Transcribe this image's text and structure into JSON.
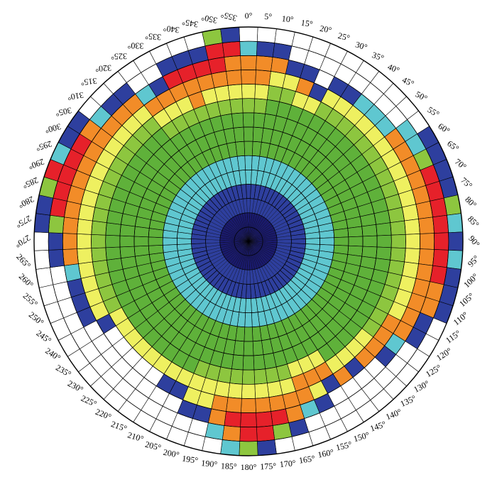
{
  "chart_data": {
    "type": "heatmap",
    "projection": "polar",
    "angle_direction": "clockwise",
    "zero_angle_position": "top",
    "angle_step_deg": 5,
    "ring_count": 15,
    "angle_labels": [
      "0°",
      "5°",
      "10°",
      "15°",
      "20°",
      "25°",
      "30°",
      "35°",
      "40°",
      "45°",
      "50°",
      "55°",
      "60°",
      "65°",
      "70°",
      "75°",
      "80°",
      "85°",
      "90°",
      "95°",
      "100°",
      "105°",
      "110°",
      "115°",
      "120°",
      "125°",
      "130°",
      "135°",
      "140°",
      "145°",
      "150°",
      "155°",
      "160°",
      "165°",
      "170°",
      "175°",
      "180°",
      "185°",
      "190°",
      "195°",
      "200°",
      "205°",
      "210°",
      "215°",
      "220°",
      "225°",
      "230°",
      "235°",
      "240°",
      "245°",
      "250°",
      "255°",
      "260°",
      "265°",
      "270°",
      "275°",
      "280°",
      "285°",
      "290°",
      "295°",
      "300°",
      "305°",
      "310°",
      "315°",
      "320°",
      "325°",
      "330°",
      "335°",
      "340°",
      "345°",
      "350°",
      "355°"
    ],
    "color_scale": {
      "0": "#1a1a6e",
      "1": "#2e3f9e",
      "2": "#5fc7d0",
      "3": "#5fb13a",
      "4": "#8dc63f",
      "5": "#eef060",
      "6": "#f28c28",
      "7": "#e6212a"
    },
    "grid_color": "#000000",
    "grid": true,
    "legend": "none",
    "cell_values": [
      [
        0,
        0,
        1,
        1,
        2,
        2,
        3,
        3,
        3,
        4,
        5,
        6,
        6,
        2,
        0
      ],
      [
        0,
        0,
        1,
        1,
        2,
        2,
        3,
        3,
        3,
        4,
        5,
        6,
        6,
        1,
        0
      ],
      [
        0,
        0,
        1,
        1,
        2,
        2,
        3,
        3,
        3,
        3,
        4,
        5,
        6,
        1,
        0
      ],
      [
        0,
        0,
        1,
        1,
        2,
        2,
        3,
        3,
        3,
        3,
        4,
        5,
        1,
        0,
        0
      ],
      [
        0,
        0,
        1,
        1,
        2,
        2,
        3,
        3,
        3,
        3,
        5,
        6,
        1,
        0,
        0
      ],
      [
        0,
        0,
        1,
        1,
        2,
        2,
        3,
        3,
        3,
        3,
        5,
        1,
        0,
        0,
        0
      ],
      [
        0,
        0,
        1,
        1,
        2,
        2,
        3,
        3,
        3,
        3,
        4,
        5,
        1,
        0,
        0
      ],
      [
        0,
        0,
        1,
        1,
        2,
        2,
        3,
        3,
        3,
        3,
        4,
        5,
        1,
        0,
        0
      ],
      [
        0,
        0,
        1,
        1,
        2,
        2,
        3,
        3,
        3,
        3,
        4,
        5,
        2,
        0,
        0
      ],
      [
        0,
        0,
        1,
        1,
        2,
        2,
        3,
        3,
        3,
        3,
        4,
        5,
        2,
        0,
        0
      ],
      [
        0,
        0,
        1,
        1,
        2,
        2,
        3,
        3,
        3,
        3,
        4,
        5,
        2,
        0,
        0
      ],
      [
        0,
        0,
        1,
        1,
        2,
        2,
        3,
        3,
        3,
        3,
        4,
        5,
        6,
        2,
        0
      ],
      [
        0,
        0,
        1,
        1,
        2,
        2,
        3,
        3,
        3,
        3,
        4,
        5,
        6,
        2,
        1
      ],
      [
        0,
        0,
        1,
        1,
        2,
        2,
        3,
        3,
        3,
        3,
        4,
        5,
        6,
        4,
        1
      ],
      [
        0,
        0,
        1,
        1,
        2,
        2,
        3,
        3,
        3,
        3,
        4,
        5,
        6,
        7,
        1
      ],
      [
        0,
        0,
        1,
        1,
        2,
        2,
        3,
        3,
        3,
        3,
        4,
        5,
        6,
        7,
        1
      ],
      [
        0,
        0,
        1,
        1,
        2,
        2,
        3,
        3,
        3,
        3,
        4,
        5,
        6,
        7,
        4
      ],
      [
        0,
        0,
        1,
        1,
        2,
        2,
        3,
        3,
        3,
        3,
        4,
        5,
        6,
        7,
        2
      ],
      [
        0,
        0,
        1,
        1,
        2,
        2,
        3,
        3,
        3,
        3,
        4,
        5,
        6,
        7,
        1
      ],
      [
        0,
        0,
        1,
        1,
        2,
        2,
        3,
        3,
        3,
        3,
        4,
        5,
        6,
        7,
        2
      ],
      [
        0,
        0,
        1,
        1,
        2,
        2,
        3,
        3,
        3,
        3,
        4,
        5,
        6,
        7,
        1
      ],
      [
        0,
        0,
        1,
        1,
        2,
        2,
        3,
        3,
        3,
        3,
        4,
        5,
        6,
        6,
        1
      ],
      [
        0,
        0,
        1,
        1,
        2,
        2,
        3,
        3,
        3,
        3,
        4,
        5,
        6,
        6,
        1
      ],
      [
        0,
        0,
        1,
        1,
        2,
        2,
        3,
        3,
        3,
        3,
        4,
        5,
        6,
        1,
        0
      ],
      [
        0,
        0,
        1,
        1,
        2,
        2,
        3,
        3,
        3,
        3,
        4,
        6,
        6,
        1,
        0
      ],
      [
        0,
        0,
        1,
        1,
        2,
        2,
        3,
        3,
        3,
        3,
        4,
        6,
        2,
        0,
        0
      ],
      [
        0,
        0,
        1,
        1,
        2,
        2,
        3,
        3,
        3,
        3,
        5,
        6,
        1,
        0,
        0
      ],
      [
        0,
        0,
        1,
        1,
        2,
        2,
        3,
        3,
        3,
        3,
        5,
        6,
        0,
        0,
        0
      ],
      [
        0,
        0,
        1,
        1,
        2,
        2,
        3,
        3,
        3,
        3,
        5,
        1,
        0,
        0,
        0
      ],
      [
        0,
        0,
        1,
        1,
        2,
        2,
        3,
        3,
        3,
        3,
        5,
        6,
        0,
        0,
        0
      ],
      [
        0,
        0,
        1,
        1,
        2,
        2,
        3,
        3,
        3,
        5,
        6,
        1,
        0,
        0,
        0
      ],
      [
        0,
        0,
        1,
        1,
        2,
        2,
        3,
        3,
        3,
        5,
        6,
        5,
        1,
        0,
        0
      ],
      [
        0,
        0,
        1,
        1,
        2,
        2,
        3,
        3,
        3,
        5,
        6,
        6,
        2,
        0,
        0
      ],
      [
        0,
        0,
        1,
        1,
        2,
        2,
        3,
        3,
        3,
        4,
        5,
        6,
        6,
        1,
        0
      ],
      [
        0,
        0,
        1,
        1,
        2,
        2,
        3,
        3,
        3,
        4,
        5,
        6,
        7,
        4,
        0
      ],
      [
        0,
        0,
        1,
        1,
        2,
        2,
        3,
        3,
        3,
        4,
        5,
        6,
        7,
        7,
        1
      ],
      [
        0,
        0,
        1,
        1,
        2,
        2,
        3,
        3,
        3,
        4,
        5,
        6,
        7,
        7,
        4
      ],
      [
        0,
        0,
        1,
        1,
        2,
        2,
        3,
        3,
        3,
        4,
        5,
        6,
        7,
        6,
        2
      ],
      [
        0,
        0,
        1,
        1,
        2,
        2,
        3,
        3,
        3,
        4,
        5,
        6,
        6,
        2,
        0
      ],
      [
        0,
        0,
        1,
        1,
        2,
        2,
        3,
        3,
        3,
        4,
        5,
        5,
        1,
        0,
        0
      ],
      [
        0,
        0,
        1,
        1,
        2,
        2,
        3,
        3,
        3,
        4,
        5,
        5,
        1,
        0,
        0
      ],
      [
        0,
        0,
        1,
        1,
        2,
        2,
        3,
        3,
        3,
        3,
        5,
        1,
        0,
        0,
        0
      ],
      [
        0,
        0,
        1,
        1,
        2,
        2,
        3,
        3,
        3,
        3,
        5,
        1,
        0,
        0,
        0
      ],
      [
        0,
        0,
        1,
        1,
        2,
        2,
        3,
        3,
        3,
        3,
        5,
        0,
        0,
        0,
        0
      ],
      [
        0,
        0,
        1,
        1,
        2,
        2,
        3,
        3,
        3,
        3,
        5,
        0,
        0,
        0,
        0
      ],
      [
        0,
        0,
        1,
        1,
        2,
        2,
        3,
        3,
        3,
        3,
        5,
        0,
        0,
        0,
        0
      ],
      [
        0,
        0,
        1,
        1,
        2,
        2,
        3,
        3,
        3,
        3,
        5,
        0,
        0,
        0,
        0
      ],
      [
        0,
        0,
        1,
        1,
        2,
        2,
        3,
        3,
        3,
        3,
        5,
        0,
        0,
        0,
        0
      ],
      [
        0,
        0,
        1,
        1,
        2,
        2,
        3,
        3,
        3,
        3,
        5,
        1,
        0,
        0,
        0
      ],
      [
        0,
        0,
        1,
        1,
        2,
        2,
        3,
        3,
        3,
        3,
        4,
        5,
        1,
        0,
        0
      ],
      [
        0,
        0,
        1,
        1,
        2,
        2,
        3,
        3,
        3,
        3,
        4,
        5,
        1,
        0,
        0
      ],
      [
        0,
        0,
        1,
        1,
        2,
        2,
        3,
        3,
        3,
        3,
        4,
        5,
        1,
        0,
        0
      ],
      [
        0,
        0,
        1,
        1,
        2,
        2,
        3,
        3,
        3,
        3,
        4,
        5,
        2,
        0,
        0
      ],
      [
        0,
        0,
        1,
        1,
        2,
        2,
        3,
        3,
        3,
        3,
        4,
        5,
        6,
        1,
        0
      ],
      [
        0,
        0,
        1,
        1,
        2,
        2,
        3,
        3,
        3,
        3,
        4,
        5,
        6,
        1,
        0
      ],
      [
        0,
        0,
        1,
        1,
        2,
        2,
        3,
        3,
        3,
        3,
        4,
        5,
        6,
        4,
        1
      ],
      [
        0,
        0,
        1,
        1,
        2,
        2,
        3,
        3,
        3,
        3,
        4,
        5,
        6,
        7,
        1
      ],
      [
        0,
        0,
        1,
        1,
        2,
        2,
        3,
        3,
        3,
        3,
        4,
        5,
        6,
        7,
        4
      ],
      [
        0,
        0,
        1,
        1,
        2,
        2,
        3,
        3,
        3,
        3,
        4,
        5,
        6,
        7,
        7
      ],
      [
        0,
        0,
        1,
        1,
        2,
        2,
        3,
        3,
        3,
        3,
        4,
        5,
        6,
        7,
        2
      ],
      [
        0,
        0,
        1,
        1,
        2,
        2,
        3,
        3,
        3,
        3,
        4,
        5,
        6,
        7,
        1
      ],
      [
        0,
        0,
        1,
        1,
        2,
        2,
        3,
        3,
        3,
        3,
        4,
        5,
        6,
        6,
        1
      ],
      [
        0,
        0,
        1,
        1,
        2,
        2,
        3,
        3,
        3,
        3,
        4,
        5,
        6,
        2,
        0
      ],
      [
        0,
        0,
        1,
        1,
        2,
        2,
        3,
        3,
        3,
        3,
        4,
        5,
        6,
        1,
        0
      ],
      [
        0,
        0,
        1,
        1,
        2,
        2,
        3,
        3,
        3,
        3,
        4,
        5,
        6,
        1,
        0
      ],
      [
        0,
        0,
        1,
        1,
        2,
        2,
        3,
        3,
        3,
        4,
        5,
        6,
        2,
        0,
        0
      ],
      [
        0,
        0,
        1,
        1,
        2,
        2,
        3,
        3,
        3,
        4,
        5,
        6,
        1,
        0,
        0
      ],
      [
        0,
        0,
        1,
        1,
        2,
        2,
        3,
        3,
        3,
        4,
        5,
        6,
        7,
        1,
        0
      ],
      [
        0,
        0,
        1,
        1,
        2,
        2,
        3,
        3,
        3,
        4,
        6,
        6,
        7,
        1,
        0
      ],
      [
        0,
        0,
        1,
        1,
        2,
        2,
        3,
        3,
        3,
        4,
        5,
        6,
        7,
        1,
        0
      ],
      [
        0,
        0,
        1,
        1,
        2,
        2,
        3,
        3,
        3,
        4,
        5,
        6,
        7,
        7,
        4
      ],
      [
        0,
        0,
        1,
        1,
        2,
        2,
        3,
        3,
        3,
        4,
        5,
        6,
        6,
        7,
        1
      ]
    ]
  }
}
